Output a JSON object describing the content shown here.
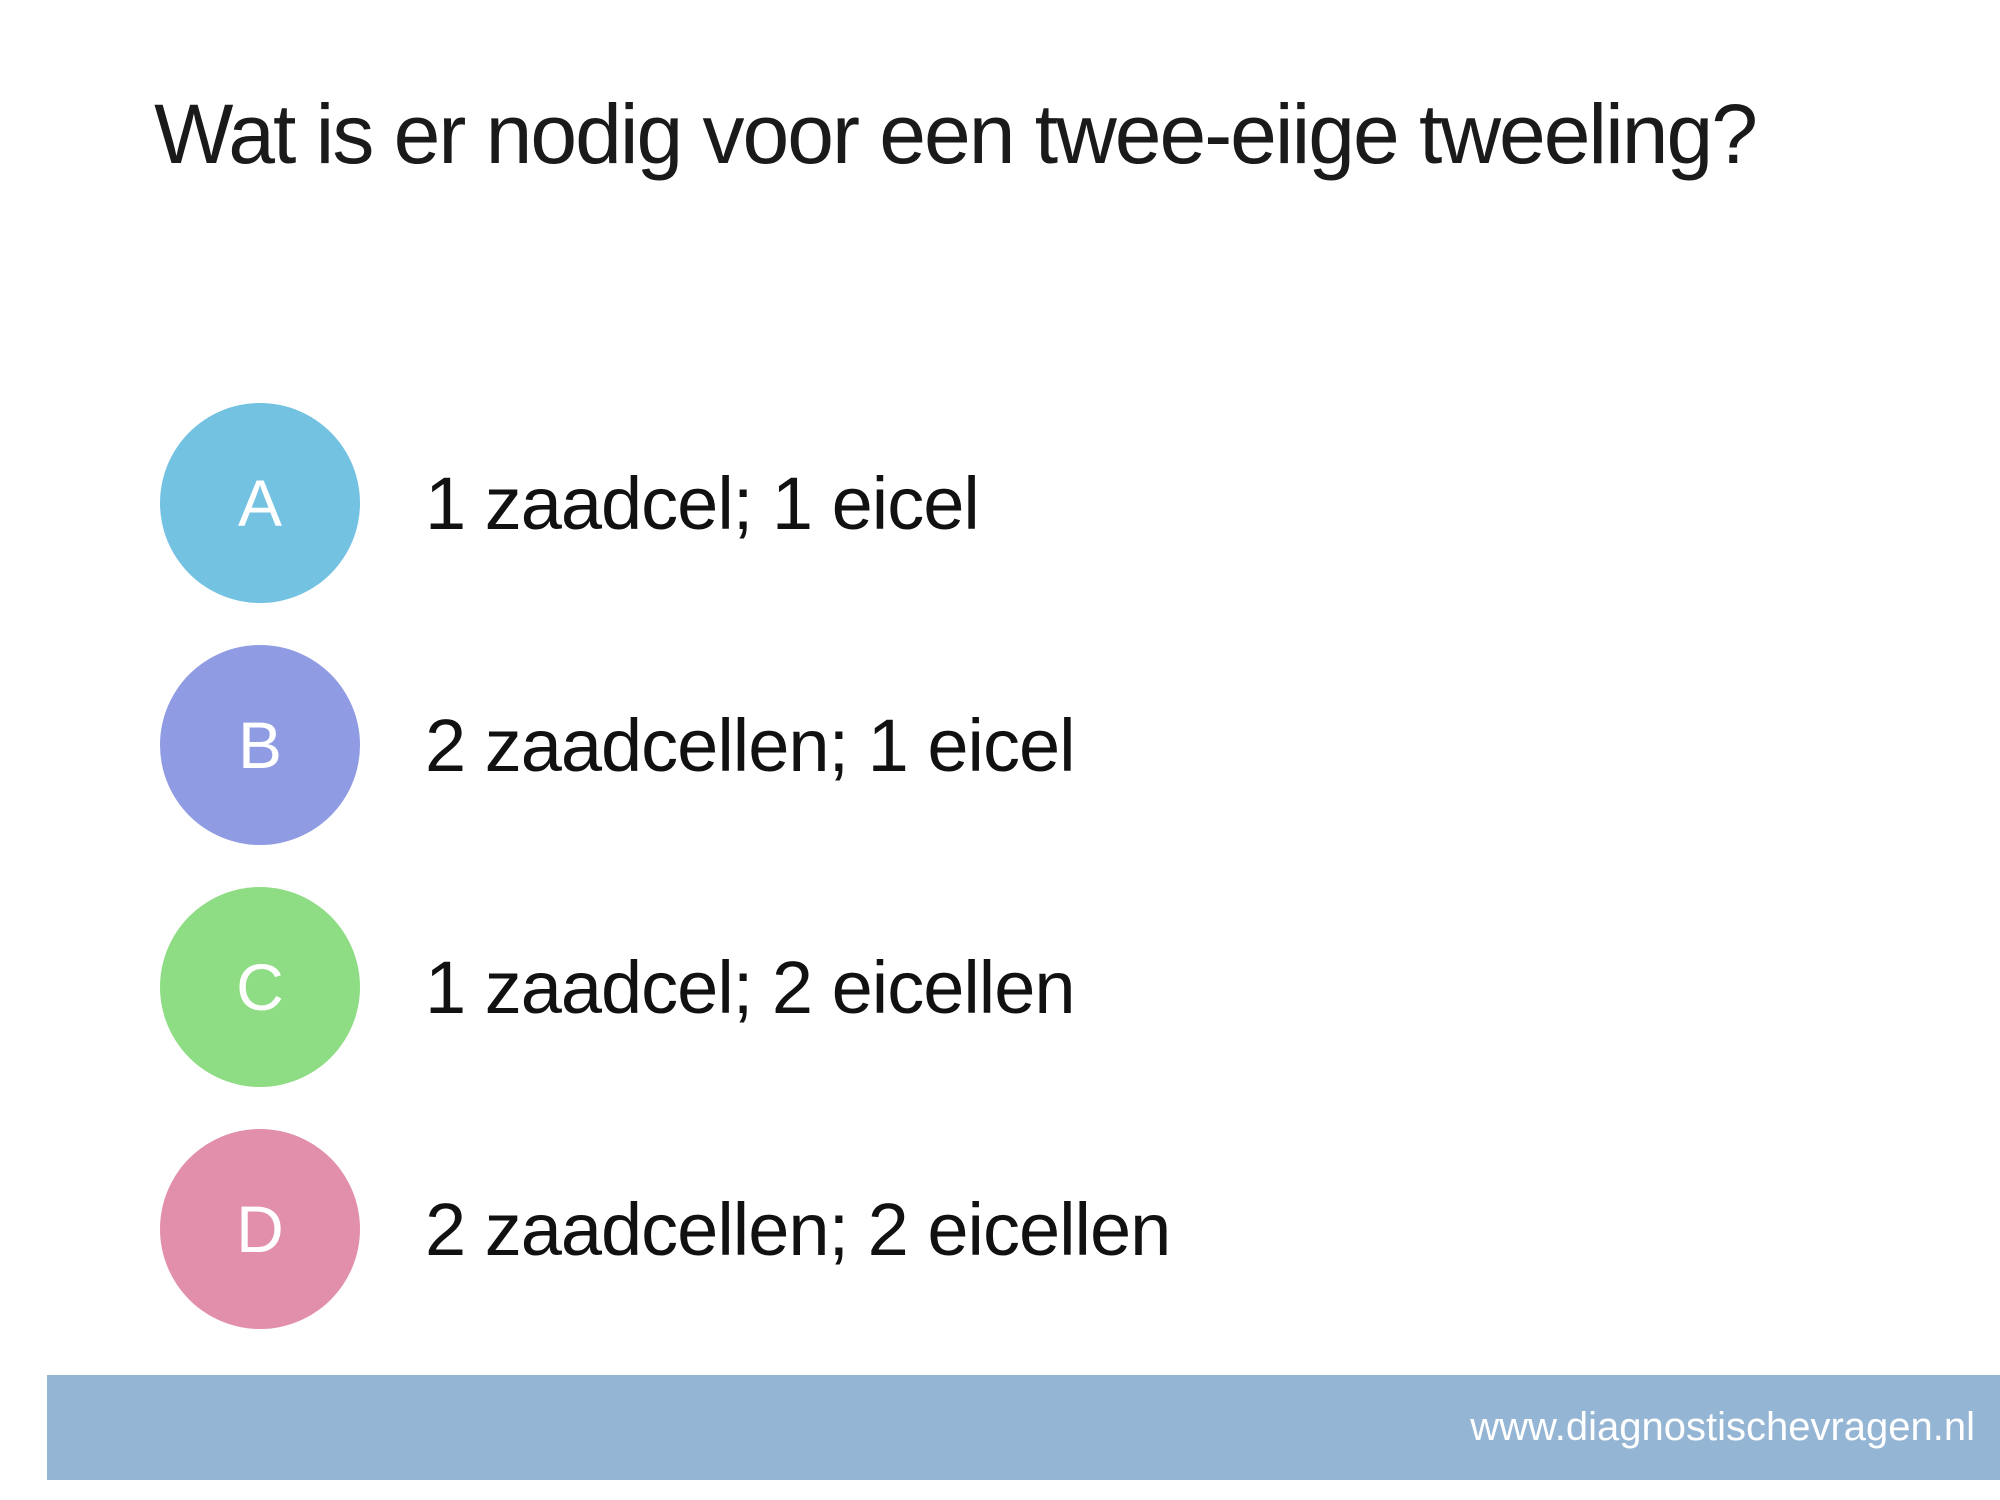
{
  "slide": {
    "title": "Wat is er nodig voor een twee-eiige tweeling?",
    "background_color": "#ffffff",
    "title_color": "#1a1a1a"
  },
  "options": [
    {
      "letter": "A",
      "text": "1 zaadcel; 1 eicel",
      "color": "#74C2E2"
    },
    {
      "letter": "B",
      "text": "2 zaadcellen; 1 eicel",
      "color": "#8F9BE3"
    },
    {
      "letter": "C",
      "text": "1 zaadcel; 2 eicellen",
      "color": "#8EDD84"
    },
    {
      "letter": "D",
      "text": "2 zaadcellen; 2 eicellen",
      "color": "#E28FAB"
    }
  ],
  "footer": {
    "url": "www.diagnostischevragen.nl",
    "bar_color": "#94B5D4",
    "text_color": "#ffffff"
  }
}
